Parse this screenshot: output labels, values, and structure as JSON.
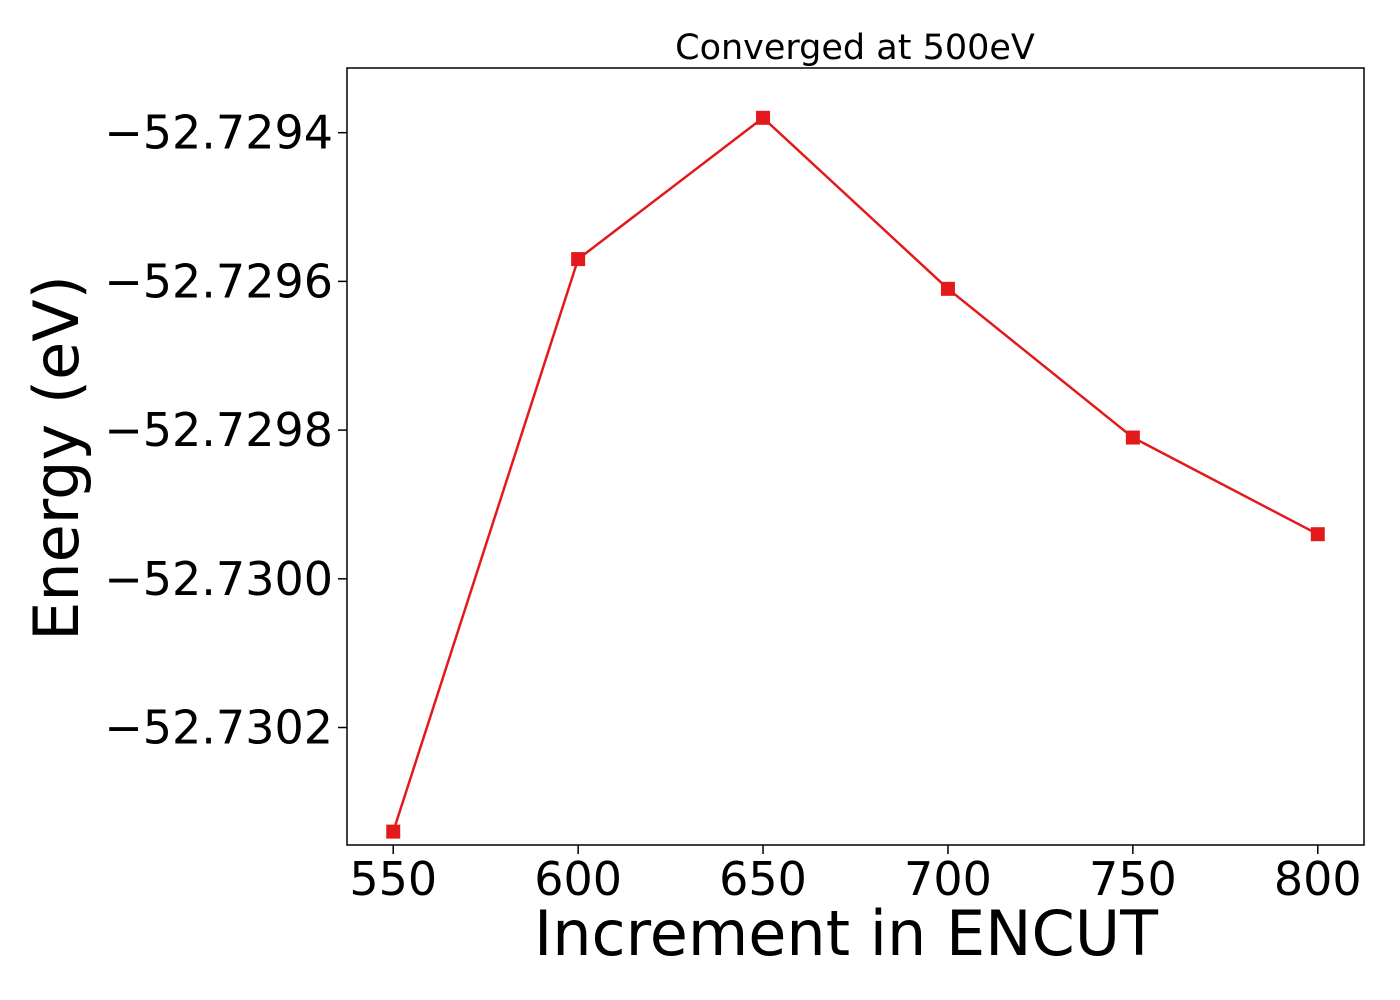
{
  "chart_data": {
    "type": "line",
    "title": "Converged at 500eV",
    "xlabel": "Increment in ENCUT",
    "ylabel": "Energy (eV)",
    "x": [
      550,
      600,
      650,
      700,
      750,
      800
    ],
    "series": [
      {
        "values": [
          -52.73034,
          -52.72957,
          -52.72938,
          -52.72961,
          -52.72981,
          -52.72994
        ],
        "color": "#e31a1c",
        "marker": "square"
      }
    ],
    "x_ticks": [
      550,
      600,
      650,
      700,
      750,
      800
    ],
    "x_tick_labels": [
      "550",
      "600",
      "650",
      "700",
      "750",
      "800"
    ],
    "y_ticks": [
      -52.7294,
      -52.7296,
      -52.7298,
      -52.73,
      -52.7302
    ],
    "y_tick_labels": [
      "−52.7294",
      "−52.7296",
      "−52.7298",
      "−52.7300",
      "−52.7302"
    ],
    "xlim": [
      537.5,
      812.5
    ],
    "ylim": [
      -52.730358,
      -52.729313
    ],
    "grid": false,
    "legend": "none"
  }
}
